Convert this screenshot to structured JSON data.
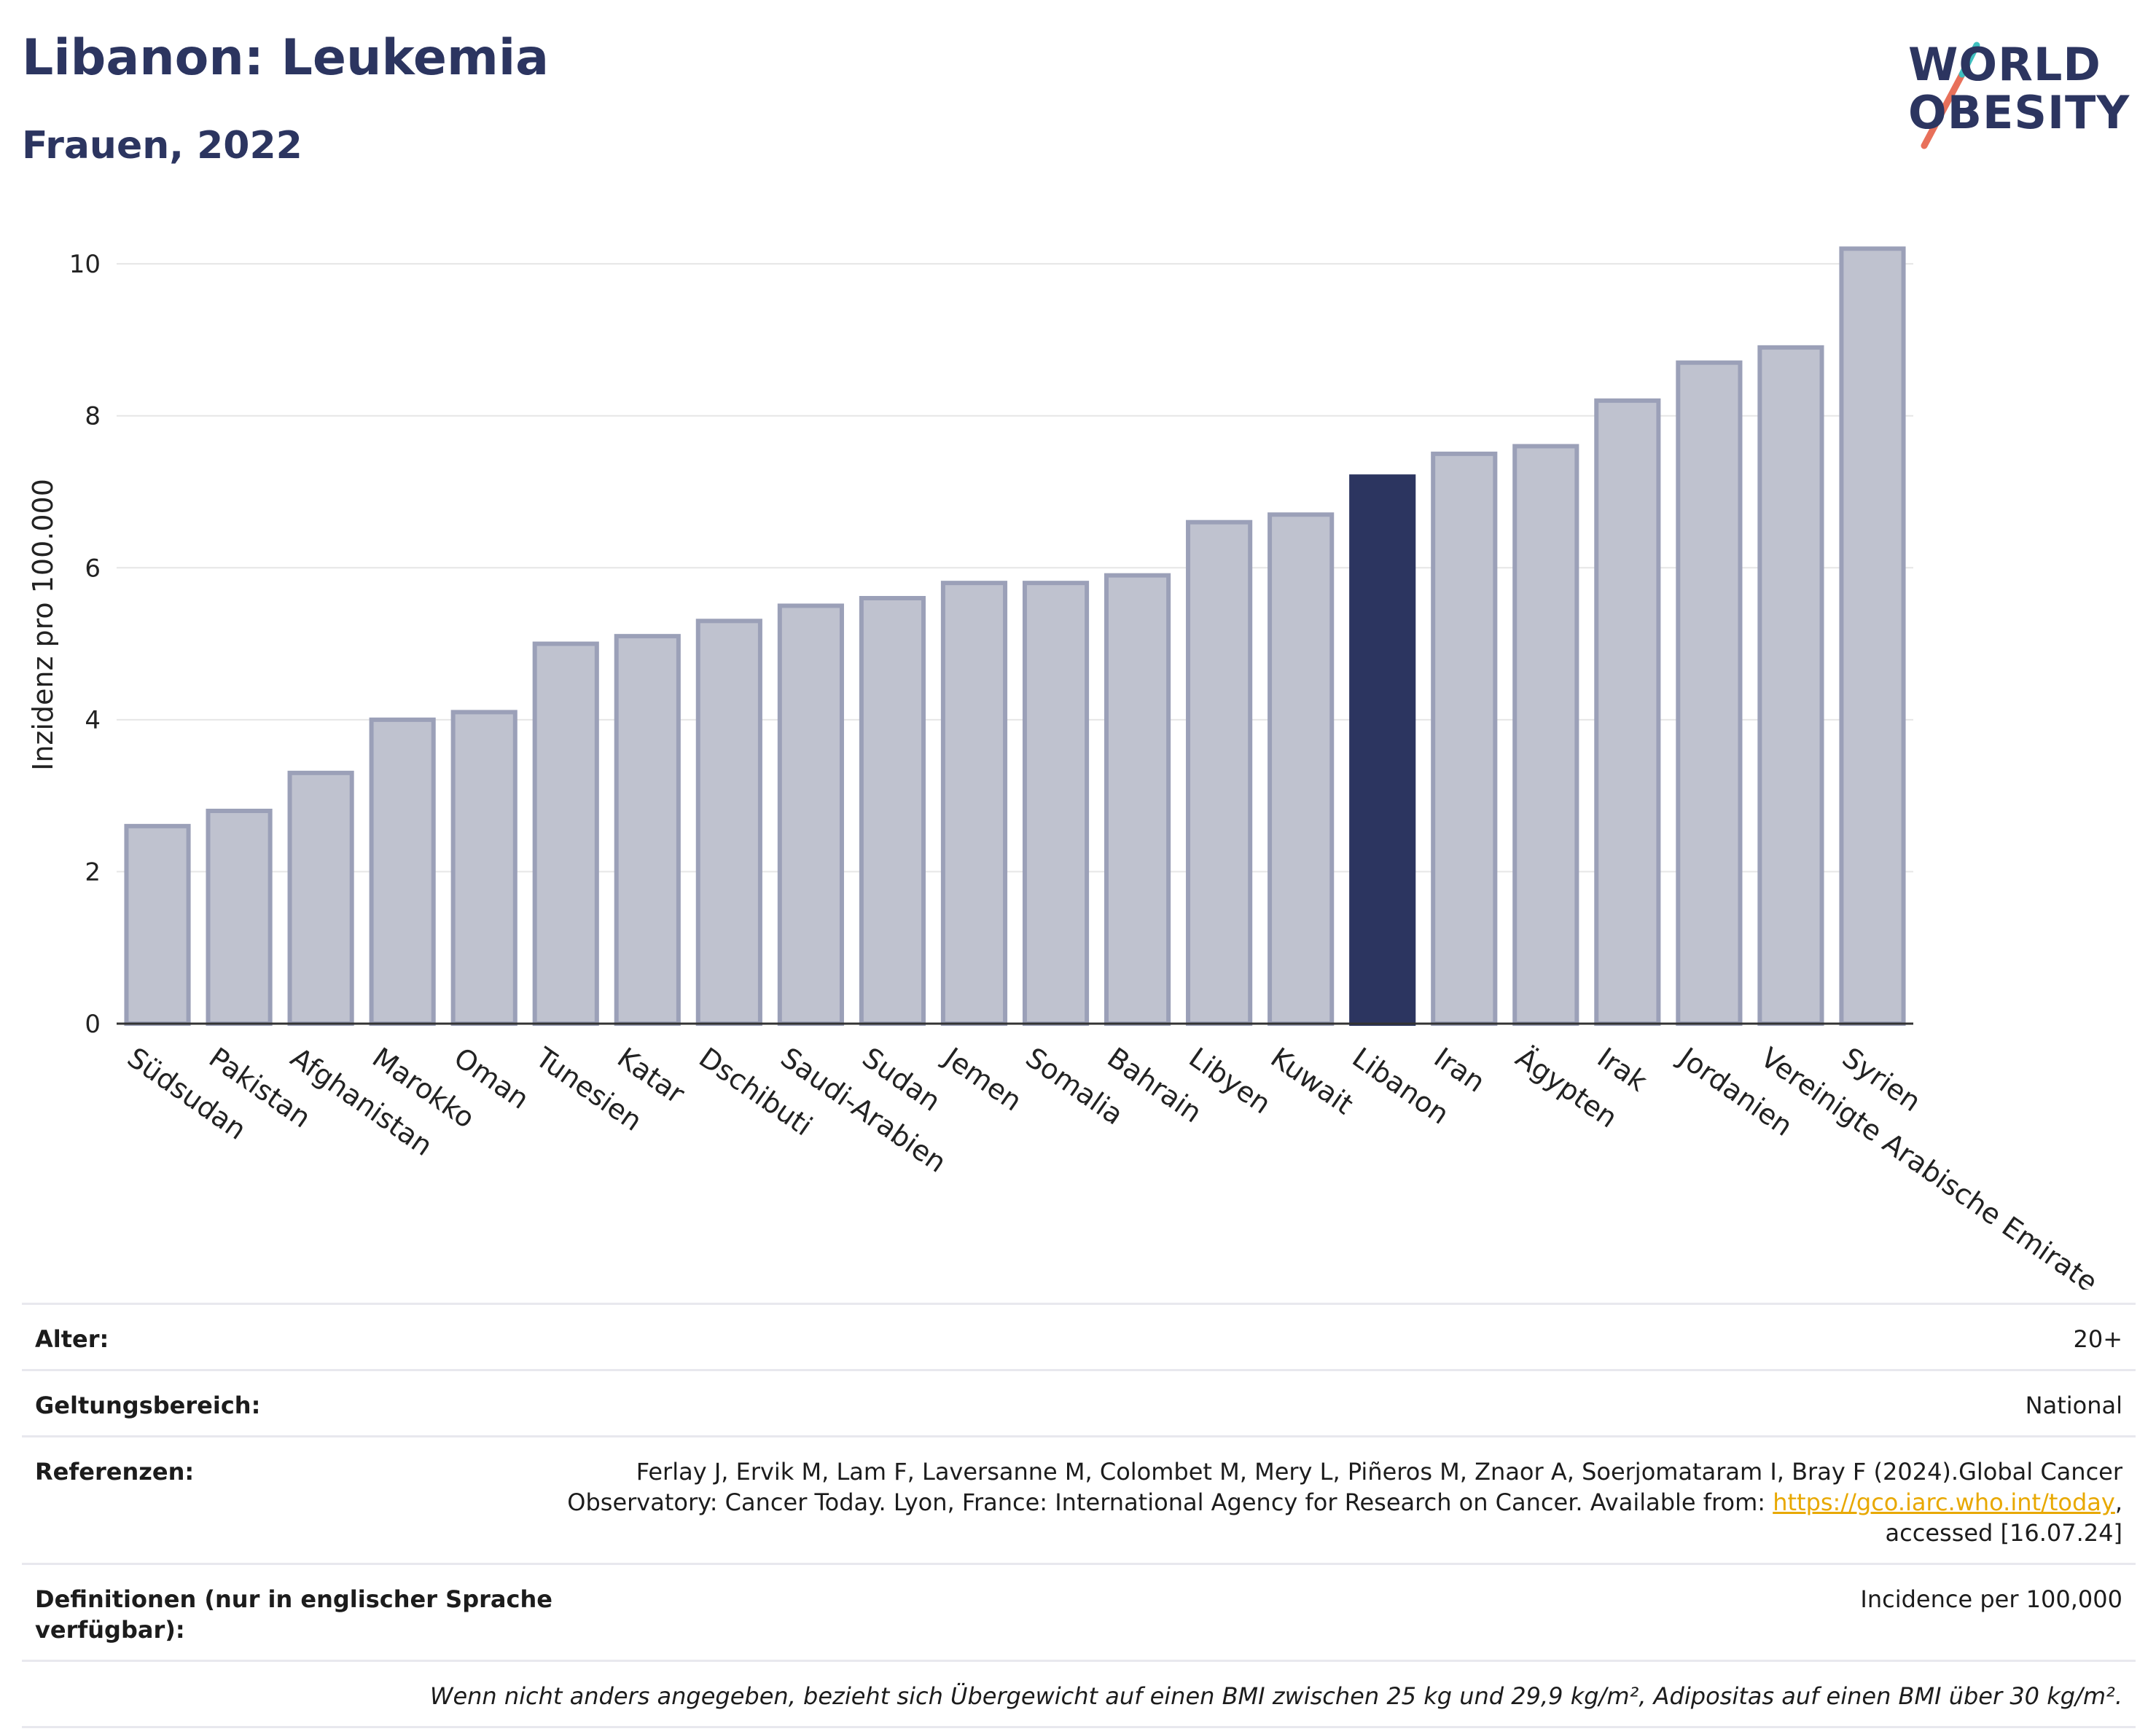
{
  "header": {
    "title": "Libanon: Leukemia",
    "subtitle": "Frauen, 2022"
  },
  "logo": {
    "line1": "WORLD",
    "line2": "OBESITY"
  },
  "chart_data": {
    "type": "bar",
    "ylabel": "Inzidenz pro 100.000",
    "ylim": [
      0,
      10.5
    ],
    "yticks": [
      0,
      2,
      4,
      6,
      8,
      10
    ],
    "grid": true,
    "highlight": "Libanon",
    "colors": {
      "default_fill": "#bfc2cf",
      "default_stroke": "#9ba0b8",
      "highlight_fill": "#2c3560",
      "grid": "#e6e6e6",
      "axis": "#333333"
    },
    "categories": [
      "Südsudan",
      "Pakistan",
      "Afghanistan",
      "Marokko",
      "Oman",
      "Tunesien",
      "Katar",
      "Dschibuti",
      "Saudi-Arabien",
      "Sudan",
      "Jemen",
      "Somalia",
      "Bahrain",
      "Libyen",
      "Kuwait",
      "Libanon",
      "Iran",
      "Ägypten",
      "Irak",
      "Jordanien",
      "Vereinigte Arabische Emirate",
      "Syrien"
    ],
    "values": [
      2.6,
      2.8,
      3.3,
      4.0,
      4.1,
      5.0,
      5.1,
      5.3,
      5.5,
      5.6,
      5.8,
      5.8,
      5.9,
      6.6,
      6.7,
      7.2,
      7.5,
      7.6,
      8.2,
      8.7,
      8.9,
      10.2
    ]
  },
  "meta": {
    "age_label": "Alter:",
    "age_value": "20+",
    "scope_label": "Geltungsbereich:",
    "scope_value": "National",
    "refs_label": "Referenzen:",
    "refs_line1": "Ferlay J, Ervik M, Lam F, Laversanne M, Colombet M, Mery L, Piñeros M, Znaor A, Soerjomataram I, Bray F (2024).Global Cancer",
    "refs_line2_text": "Observatory: Cancer Today. Lyon, France: International Agency for Research on Cancer. Available from: ",
    "refs_link": "https://gco.iarc.who.int/today",
    "refs_line2_end": ",",
    "refs_line3": "accessed [16.07.24]",
    "defs_label": "Definitionen (nur in englischer Sprache verfügbar):",
    "defs_value": "Incidence per 100,000",
    "note": "Wenn nicht anders angegeben, bezieht sich Übergewicht auf einen BMI zwischen 25 kg und 29,9 kg/m², Adipositas auf einen BMI über 30 kg/m²."
  }
}
